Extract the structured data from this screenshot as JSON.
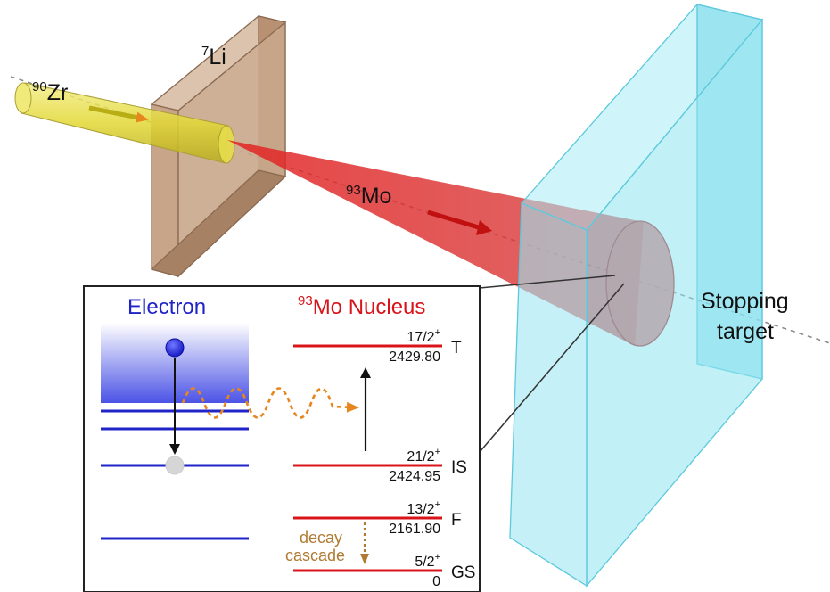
{
  "scene": {
    "beam_label": {
      "mass": "90",
      "symbol": "Zr"
    },
    "target_label": {
      "mass": "7",
      "symbol": "Li"
    },
    "product_label": {
      "mass": "93",
      "symbol": "Mo"
    },
    "stopping_target_label": [
      "Stopping",
      "target"
    ]
  },
  "inset": {
    "electron_title": "Electron",
    "nucleus_title": {
      "mass": "93",
      "text": "Mo Nucleus"
    },
    "levels": [
      {
        "spin": "17/2",
        "parity": "+",
        "energy": "2429.80",
        "tag": "T"
      },
      {
        "spin": "21/2",
        "parity": "+",
        "energy": "2424.95",
        "tag": "IS"
      },
      {
        "spin": "13/2",
        "parity": "+",
        "energy": "2161.90",
        "tag": "F"
      },
      {
        "spin": "5/2",
        "parity": "+",
        "energy": "0",
        "tag": "GS"
      }
    ],
    "decay_label": [
      "decay",
      "cascade"
    ]
  },
  "colors": {
    "electron_blue": "#1f23c8",
    "nucleus_red": "#d8141a",
    "photon_orange": "#e8861e",
    "decay_brown": "#b07a32",
    "li_target": "#c8a489",
    "zr_beam": "#e9e04a",
    "mo_cone": "#dc3a3a",
    "stopping_target": "#8fe3f0"
  }
}
